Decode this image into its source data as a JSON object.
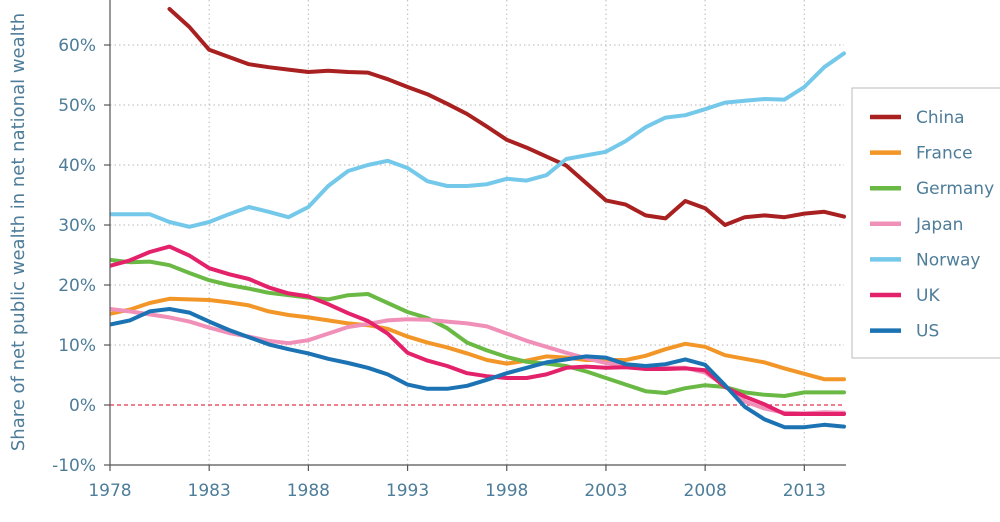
{
  "chart_data": {
    "type": "line",
    "title": "",
    "xlabel": "",
    "ylabel": "Share of net public wealth in net national wealth",
    "xlim": [
      1978,
      2015
    ],
    "ylim": [
      -10,
      65
    ],
    "x_ticks": [
      "1978",
      "1983",
      "1988",
      "1993",
      "1998",
      "2003",
      "2008",
      "2013"
    ],
    "y_ticks": [
      "-10%",
      "0%",
      "10%",
      "20%",
      "30%",
      "40%",
      "50%",
      "60%"
    ],
    "grid": "dotted",
    "reference_line": {
      "y": 0,
      "style": "dashed",
      "color": "#e8334a"
    },
    "legend_position": "right",
    "x": [
      1978,
      1979,
      1980,
      1981,
      1982,
      1983,
      1984,
      1985,
      1986,
      1987,
      1988,
      1989,
      1990,
      1991,
      1992,
      1993,
      1994,
      1995,
      1996,
      1997,
      1998,
      1999,
      2000,
      2001,
      2002,
      2003,
      2004,
      2005,
      2006,
      2007,
      2008,
      2009,
      2010,
      2011,
      2012,
      2013,
      2014,
      2015
    ],
    "series": [
      {
        "name": "China",
        "color": "#a82020",
        "values": [
          null,
          null,
          null,
          66,
          63,
          59.2,
          58,
          56.8,
          56.3,
          55.9,
          55.5,
          55.7,
          55.5,
          55.4,
          54.3,
          53,
          51.8,
          50.2,
          48.5,
          46.4,
          44.2,
          42.9,
          41.4,
          39.9,
          37,
          34.1,
          33.4,
          31.6,
          31.1,
          34,
          32.8,
          30,
          31.3,
          31.6,
          31.3,
          31.9,
          32.2,
          31.4
        ]
      },
      {
        "name": "France",
        "color": "#f39628",
        "values": [
          15.2,
          15.9,
          17,
          17.7,
          17.6,
          17.5,
          17.1,
          16.6,
          15.6,
          15,
          14.6,
          14.1,
          13.6,
          13.3,
          12.7,
          11.4,
          10.4,
          9.6,
          8.6,
          7.5,
          6.9,
          7.4,
          8.1,
          7.9,
          7.5,
          7.5,
          7.5,
          8.2,
          9.3,
          10.2,
          9.7,
          8.3,
          7.7,
          7.1,
          6.1,
          5.2,
          4.3,
          4.3
        ]
      },
      {
        "name": "Germany",
        "color": "#6ab944",
        "values": [
          24.2,
          23.8,
          23.9,
          23.3,
          22,
          20.8,
          20,
          19.4,
          18.7,
          18.3,
          17.9,
          17.6,
          18.3,
          18.5,
          17,
          15.5,
          14.5,
          12.8,
          10.4,
          9.1,
          8,
          7.2,
          6.9,
          6.5,
          5.6,
          4.5,
          3.4,
          2.3,
          2,
          2.8,
          3.3,
          3,
          2.1,
          1.7,
          1.5,
          2.1,
          2.1,
          2.1
        ]
      },
      {
        "name": "Japan",
        "color": "#f090b8",
        "values": [
          16,
          15.6,
          15.1,
          14.6,
          13.9,
          12.9,
          12,
          11.4,
          10.7,
          10.3,
          10.8,
          11.9,
          13,
          13.5,
          14.1,
          14.3,
          14.2,
          13.9,
          13.6,
          13.1,
          11.9,
          10.7,
          9.7,
          8.7,
          7.8,
          7,
          6.7,
          6.3,
          6.2,
          6.2,
          5.4,
          3.2,
          0.6,
          -0.6,
          -1.3,
          -1.4,
          -1.2,
          -1.3
        ]
      },
      {
        "name": "Norway",
        "color": "#74c8ea",
        "values": [
          31.8,
          31.8,
          31.8,
          30.5,
          29.7,
          30.5,
          31.8,
          33,
          32.2,
          31.3,
          33,
          36.5,
          39,
          40,
          40.7,
          39.5,
          37.3,
          36.5,
          36.5,
          36.8,
          37.7,
          37.4,
          38.3,
          41,
          41.6,
          42.2,
          44,
          46.3,
          47.9,
          48.3,
          49.3,
          50.4,
          50.7,
          51,
          50.9,
          53,
          56.3,
          58.6
        ]
      },
      {
        "name": "UK",
        "color": "#e3226b",
        "values": [
          23.2,
          24.1,
          25.5,
          26.4,
          24.9,
          22.8,
          21.8,
          21,
          19.6,
          18.6,
          18.1,
          16.8,
          15.3,
          14,
          11.9,
          8.7,
          7.4,
          6.5,
          5.3,
          4.8,
          4.5,
          4.5,
          5.1,
          6.2,
          6.4,
          6.2,
          6.3,
          6,
          6,
          6.1,
          5.8,
          3,
          1.4,
          0.1,
          -1.5,
          -1.5,
          -1.5,
          -1.5
        ]
      },
      {
        "name": "US",
        "color": "#1c73b4",
        "values": [
          13.4,
          14.1,
          15.6,
          16,
          15.4,
          13.9,
          12.5,
          11.3,
          10.1,
          9.3,
          8.6,
          7.7,
          7,
          6.2,
          5.1,
          3.4,
          2.7,
          2.7,
          3.2,
          4.2,
          5.3,
          6.2,
          7.1,
          7.6,
          8.1,
          7.9,
          6.8,
          6.5,
          6.8,
          7.6,
          6.7,
          3.3,
          -0.3,
          -2.4,
          -3.7,
          -3.7,
          -3.3,
          -3.6
        ]
      }
    ]
  }
}
